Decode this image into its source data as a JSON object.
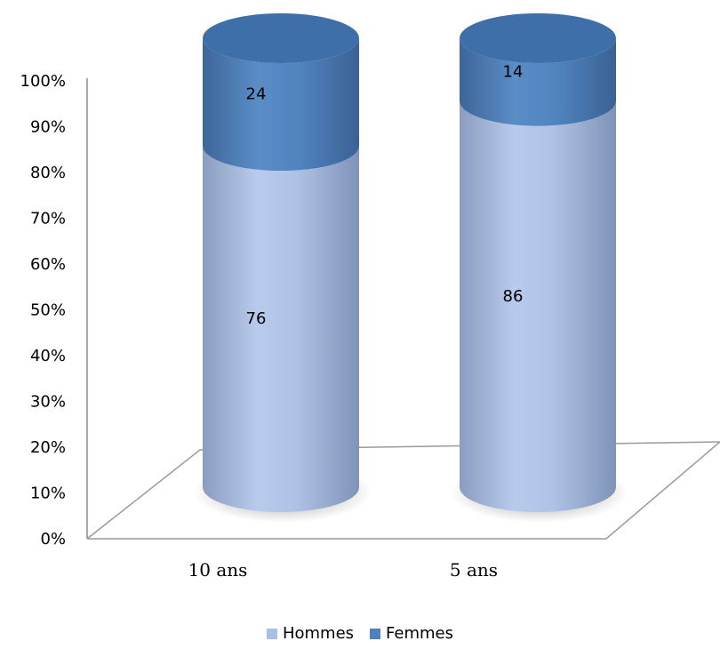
{
  "chart_data": {
    "type": "bar",
    "stacked": true,
    "style": "3d-cylinder",
    "categories": [
      "10 ans",
      "5 ans"
    ],
    "series": [
      {
        "name": "Hommes",
        "values": [
          76,
          86
        ],
        "color": "#a9bfe3"
      },
      {
        "name": "Femmes",
        "values": [
          24,
          14
        ],
        "color": "#4f81bd"
      }
    ],
    "yticks": [
      "0%",
      "10%",
      "20%",
      "30%",
      "40%",
      "50%",
      "60%",
      "70%",
      "80%",
      "90%",
      "100%"
    ],
    "ylim": [
      0,
      100
    ],
    "legend": "bottom",
    "grid": false
  }
}
